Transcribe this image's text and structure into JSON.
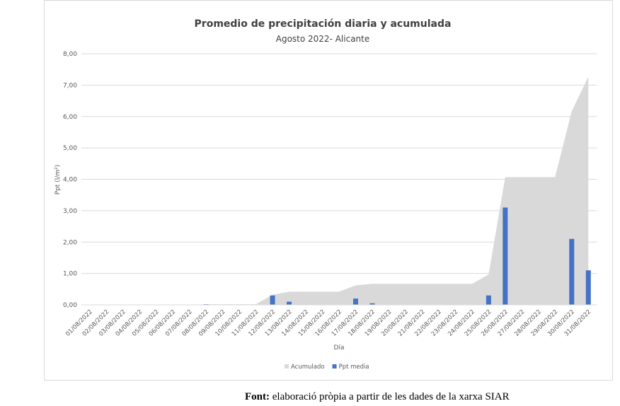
{
  "chart_data": {
    "type": "bar-area",
    "title": "Promedio de precipitación diaria y acumulada",
    "subtitle": "Agosto 2022- Alicante",
    "y_label": "Ppt (l/m²)",
    "x_label": "Día",
    "categories": [
      "01/08/2022",
      "02/08/2022",
      "03/08/2022",
      "04/08/2022",
      "05/08/2022",
      "06/08/2022",
      "07/08/2022",
      "08/08/2022",
      "09/08/2022",
      "10/08/2022",
      "11/08/2022",
      "12/08/2022",
      "13/08/2022",
      "14/08/2022",
      "15/08/2022",
      "16/08/2022",
      "17/08/2022",
      "18/08/2022",
      "19/08/2022",
      "20/08/2022",
      "21/08/2022",
      "22/08/2022",
      "23/08/2022",
      "24/08/2022",
      "25/08/2022",
      "26/08/2022",
      "27/08/2022",
      "28/08/2022",
      "29/08/2022",
      "30/08/2022",
      "31/08/2022"
    ],
    "series": [
      {
        "name": "Acumulado",
        "kind": "area",
        "color": "#d9d9d9",
        "values": [
          0,
          0,
          0,
          0,
          0,
          0,
          0,
          0.02,
          0.02,
          0.02,
          0.02,
          0.32,
          0.42,
          0.42,
          0.42,
          0.42,
          0.62,
          0.67,
          0.67,
          0.67,
          0.67,
          0.67,
          0.67,
          0.67,
          0.97,
          4.07,
          4.07,
          4.07,
          4.07,
          6.17,
          7.27
        ]
      },
      {
        "name": "Ppt media",
        "kind": "bar",
        "color": "#4472c4",
        "values": [
          0,
          0,
          0,
          0,
          0,
          0,
          0,
          0.02,
          0,
          0,
          0,
          0.3,
          0.1,
          0,
          0,
          0,
          0.2,
          0.05,
          0,
          0,
          0,
          0,
          0,
          0,
          0.3,
          3.1,
          0,
          0,
          0,
          2.1,
          1.1
        ]
      }
    ],
    "ylim": [
      0,
      8
    ],
    "yticks": [
      {
        "value": 0,
        "label": "0,00"
      },
      {
        "value": 1,
        "label": "1,00"
      },
      {
        "value": 2,
        "label": "2,00"
      },
      {
        "value": 3,
        "label": "3,00"
      },
      {
        "value": 4,
        "label": "4,00"
      },
      {
        "value": 5,
        "label": "5,00"
      },
      {
        "value": 6,
        "label": "6,00"
      },
      {
        "value": 7,
        "label": "7,00"
      },
      {
        "value": 8,
        "label": "8,00"
      }
    ],
    "grid": true,
    "legend": "bottom"
  },
  "footer": {
    "label": "Font:",
    "text": "elaboració pròpia a partir de les dades de la xarxa SIAR"
  }
}
